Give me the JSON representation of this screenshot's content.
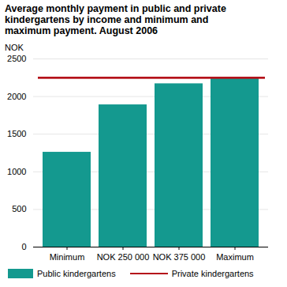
{
  "chart_data": {
    "type": "bar",
    "title": "Average monthly payment in public and private kindergartens by income and minimum and maximum payment. August 2006",
    "y_label": "NOK",
    "categories": [
      "Minimum",
      "NOK 250 000",
      "NOK 375 000",
      "Maximum"
    ],
    "series": [
      {
        "name": "Public kindergartens",
        "type": "bar",
        "color": "#14998f",
        "values": [
          1260,
          1890,
          2170,
          2250
        ]
      },
      {
        "name": "Private kindergartens",
        "type": "line",
        "color": "#b5121b",
        "values": [
          2250,
          2250,
          2250,
          2250
        ]
      }
    ],
    "ylim": [
      0,
      2500
    ],
    "yticks": [
      0,
      500,
      1000,
      1500,
      2000,
      2500
    ],
    "grid": true
  }
}
